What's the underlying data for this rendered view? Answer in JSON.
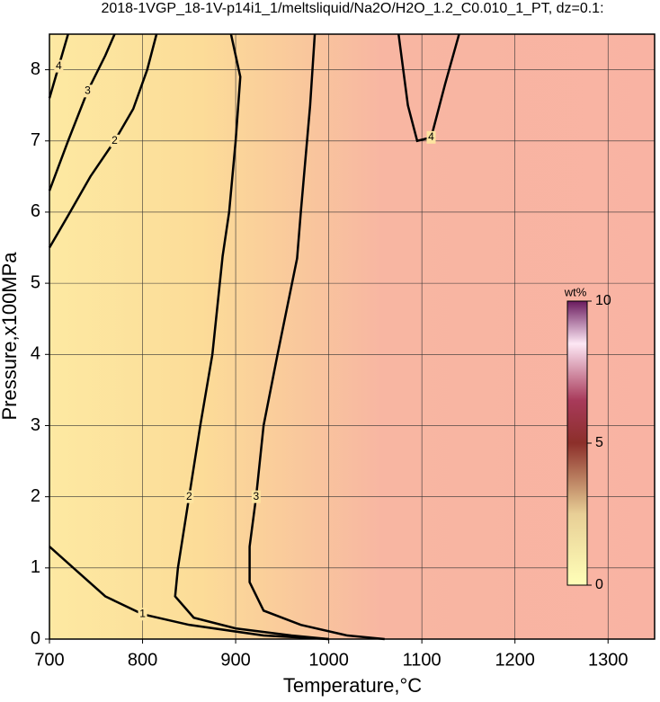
{
  "chart_data": {
    "type": "contour",
    "title": "2018-1VGP_18-1V-p14i1_1/meltsliquid/Na2O/H2O_1.2_C0.010_1_PT, dz=0.1:",
    "x_label": "Temperature,°C",
    "y_label": "Pressure,x100MPa",
    "xlim": [
      700,
      1350
    ],
    "xticks": [
      700,
      800,
      900,
      1000,
      1100,
      1200,
      1300
    ],
    "ylim": [
      0,
      8.5
    ],
    "yticks": [
      0,
      1,
      2,
      3,
      4,
      5,
      6,
      7,
      8
    ],
    "grid": true,
    "contours": [
      {
        "level": 1,
        "x": [
          700,
          730,
          760,
          800,
          850,
          930,
          1000
        ],
        "y": [
          1.3,
          0.95,
          0.6,
          0.35,
          0.2,
          0.05,
          0
        ]
      },
      {
        "level": 2,
        "x": [
          700,
          720,
          744,
          770,
          790,
          805,
          815
        ],
        "y": [
          5.5,
          5.95,
          6.5,
          7.0,
          7.45,
          8.0,
          8.5
        ]
      },
      {
        "level": 3,
        "x": [
          700,
          720,
          741,
          760,
          770
        ],
        "y": [
          6.3,
          7.0,
          7.7,
          8.2,
          8.5
        ]
      },
      {
        "level": 4,
        "x": [
          700,
          710,
          720
        ],
        "y": [
          7.6,
          8.05,
          8.5
        ]
      },
      {
        "level": 2,
        "x": [
          895,
          905,
          900,
          893,
          886,
          875,
          862,
          850,
          838,
          835,
          855,
          900,
          960,
          1000
        ],
        "y": [
          8.5,
          7.9,
          7.0,
          6.0,
          5.38,
          4.0,
          3.0,
          2.0,
          1.0,
          0.6,
          0.3,
          0.15,
          0.05,
          0
        ]
      },
      {
        "level": 3,
        "x": [
          985,
          980,
          970,
          966,
          945,
          930,
          922,
          915,
          915,
          930,
          970,
          1020,
          1060
        ],
        "y": [
          8.5,
          7.5,
          6.0,
          5.35,
          4.0,
          3.0,
          2.0,
          1.3,
          0.8,
          0.4,
          0.2,
          0.05,
          0
        ]
      },
      {
        "level": 4,
        "x": [
          1075,
          1085,
          1095,
          1110,
          1125,
          1140
        ],
        "y": [
          8.5,
          7.5,
          7.0,
          7.05,
          7.8,
          8.5
        ]
      }
    ],
    "colorbar": {
      "label": "wt%",
      "lim": [
        0,
        10
      ],
      "ticks": [
        0,
        5,
        10
      ]
    }
  }
}
